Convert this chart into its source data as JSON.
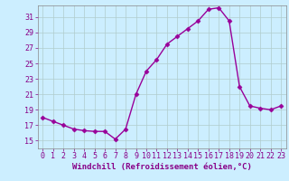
{
  "x": [
    0,
    1,
    2,
    3,
    4,
    5,
    6,
    7,
    8,
    9,
    10,
    11,
    12,
    13,
    14,
    15,
    16,
    17,
    18,
    19,
    20,
    21,
    22,
    23
  ],
  "y": [
    18.0,
    17.5,
    17.0,
    16.5,
    16.3,
    16.2,
    16.2,
    15.2,
    16.5,
    21.0,
    24.0,
    25.5,
    27.5,
    28.5,
    29.5,
    30.5,
    32.0,
    32.2,
    30.5,
    22.0,
    19.5,
    19.2,
    19.0,
    19.5
  ],
  "xlabel": "Windchill (Refroidissement éolien,°C)",
  "ylim": [
    14.0,
    32.5
  ],
  "yticks": [
    15,
    17,
    19,
    21,
    23,
    25,
    27,
    29,
    31
  ],
  "xticks": [
    0,
    1,
    2,
    3,
    4,
    5,
    6,
    7,
    8,
    9,
    10,
    11,
    12,
    13,
    14,
    15,
    16,
    17,
    18,
    19,
    20,
    21,
    22,
    23
  ],
  "line_color": "#990099",
  "bg_color": "#cceeff",
  "grid_color": "#b0cccc",
  "marker": "D",
  "marker_size": 2.5,
  "line_width": 1.0,
  "xlabel_fontsize": 6.5,
  "tick_fontsize": 6.0
}
